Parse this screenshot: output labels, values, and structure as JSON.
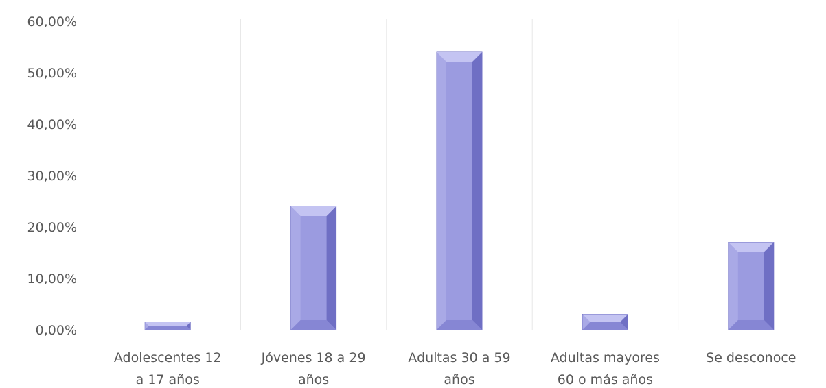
{
  "chart_data": {
    "type": "bar",
    "title": "",
    "xlabel": "",
    "ylabel": "",
    "categories": [
      [
        "Adolescentes 12",
        "a 17 años"
      ],
      [
        "Jóvenes 18 a 29",
        "años"
      ],
      [
        "Adultas 30 a 59",
        "años"
      ],
      [
        "Adultas mayores",
        "60 o más años"
      ],
      [
        "Se desconoce"
      ]
    ],
    "values": [
      1.5,
      24.0,
      54.0,
      3.0,
      17.0
    ],
    "ylim": [
      0,
      60
    ],
    "yticks": [
      0,
      10,
      20,
      30,
      40,
      50,
      60
    ],
    "ytick_labels": [
      "0,00%",
      "10,00%",
      "20,00%",
      "30,00%",
      "40,00%",
      "50,00%",
      "60,00%"
    ],
    "grid": "vertical-separators",
    "legend": "none",
    "colors": {
      "bar_face": "#9b9be0",
      "bar_side": "#6f6fc4",
      "bar_top": "#c4c4f2",
      "separator": "#e6e6e6",
      "text": "#595959"
    }
  }
}
